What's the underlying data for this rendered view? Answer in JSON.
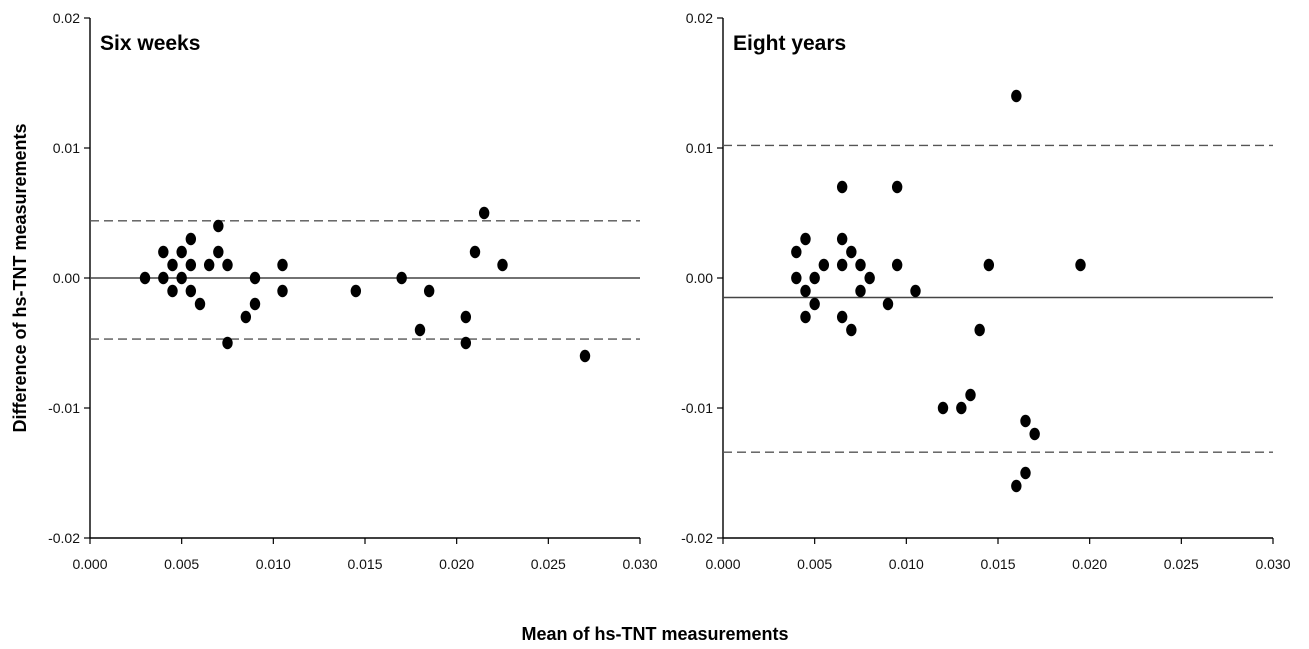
{
  "figure": {
    "ylabel": "Difference of hs-TNT measurements",
    "xlabel": "Mean of hs-TNT measurements"
  },
  "chart_data": [
    {
      "type": "scatter",
      "title": "Six weeks",
      "xlim": [
        0.0,
        0.03
      ],
      "ylim": [
        -0.02,
        0.02
      ],
      "x_ticks": [
        "0.000",
        "0.005",
        "0.010",
        "0.015",
        "0.020",
        "0.025",
        "0.030"
      ],
      "y_ticks": [
        "0.02",
        "0.01",
        "0.00",
        "-0.01",
        "-0.02"
      ],
      "grid": false,
      "mean_difference": 0.0,
      "limits_of_agreement": [
        0.0044,
        -0.0047
      ],
      "points": [
        {
          "x": 0.003,
          "y": 0.0
        },
        {
          "x": 0.004,
          "y": 0.002
        },
        {
          "x": 0.004,
          "y": 0.0
        },
        {
          "x": 0.0045,
          "y": 0.001
        },
        {
          "x": 0.0045,
          "y": -0.001
        },
        {
          "x": 0.005,
          "y": 0.002
        },
        {
          "x": 0.005,
          "y": 0.0
        },
        {
          "x": 0.0055,
          "y": 0.003
        },
        {
          "x": 0.0055,
          "y": 0.001
        },
        {
          "x": 0.0055,
          "y": -0.001
        },
        {
          "x": 0.006,
          "y": -0.002
        },
        {
          "x": 0.0065,
          "y": 0.001
        },
        {
          "x": 0.007,
          "y": 0.004
        },
        {
          "x": 0.007,
          "y": 0.002
        },
        {
          "x": 0.0075,
          "y": 0.001
        },
        {
          "x": 0.0075,
          "y": -0.005
        },
        {
          "x": 0.0085,
          "y": -0.003
        },
        {
          "x": 0.009,
          "y": 0.0
        },
        {
          "x": 0.009,
          "y": -0.002
        },
        {
          "x": 0.0105,
          "y": 0.001
        },
        {
          "x": 0.0105,
          "y": -0.001
        },
        {
          "x": 0.0145,
          "y": -0.001
        },
        {
          "x": 0.017,
          "y": 0.0
        },
        {
          "x": 0.018,
          "y": -0.004
        },
        {
          "x": 0.0185,
          "y": -0.001
        },
        {
          "x": 0.0205,
          "y": -0.003
        },
        {
          "x": 0.0205,
          "y": -0.005
        },
        {
          "x": 0.021,
          "y": 0.002
        },
        {
          "x": 0.0215,
          "y": 0.005
        },
        {
          "x": 0.0225,
          "y": 0.001
        },
        {
          "x": 0.027,
          "y": -0.006
        }
      ]
    },
    {
      "type": "scatter",
      "title": "Eight years",
      "xlim": [
        0.0,
        0.03
      ],
      "ylim": [
        -0.02,
        0.02
      ],
      "x_ticks": [
        "0.000",
        "0.005",
        "0.010",
        "0.015",
        "0.020",
        "0.025",
        "0.030"
      ],
      "y_ticks": [
        "0.02",
        "0.01",
        "0.00",
        "-0.01",
        "-0.02"
      ],
      "grid": false,
      "mean_difference": -0.0015,
      "limits_of_agreement": [
        0.0102,
        -0.0134
      ],
      "points": [
        {
          "x": 0.004,
          "y": 0.002
        },
        {
          "x": 0.004,
          "y": 0.0
        },
        {
          "x": 0.0045,
          "y": 0.003
        },
        {
          "x": 0.0045,
          "y": -0.001
        },
        {
          "x": 0.0045,
          "y": -0.003
        },
        {
          "x": 0.005,
          "y": 0.0
        },
        {
          "x": 0.005,
          "y": -0.002
        },
        {
          "x": 0.0055,
          "y": 0.001
        },
        {
          "x": 0.0065,
          "y": 0.007
        },
        {
          "x": 0.0065,
          "y": 0.003
        },
        {
          "x": 0.0065,
          "y": 0.001
        },
        {
          "x": 0.0065,
          "y": -0.003
        },
        {
          "x": 0.007,
          "y": 0.002
        },
        {
          "x": 0.007,
          "y": -0.004
        },
        {
          "x": 0.0075,
          "y": 0.001
        },
        {
          "x": 0.0075,
          "y": -0.001
        },
        {
          "x": 0.008,
          "y": 0.0
        },
        {
          "x": 0.009,
          "y": -0.002
        },
        {
          "x": 0.0095,
          "y": 0.007
        },
        {
          "x": 0.0095,
          "y": 0.001
        },
        {
          "x": 0.0105,
          "y": -0.001
        },
        {
          "x": 0.012,
          "y": -0.01
        },
        {
          "x": 0.013,
          "y": -0.01
        },
        {
          "x": 0.0135,
          "y": -0.009
        },
        {
          "x": 0.014,
          "y": -0.004
        },
        {
          "x": 0.0145,
          "y": 0.001
        },
        {
          "x": 0.016,
          "y": 0.014
        },
        {
          "x": 0.016,
          "y": -0.016
        },
        {
          "x": 0.0165,
          "y": -0.011
        },
        {
          "x": 0.0165,
          "y": -0.015
        },
        {
          "x": 0.017,
          "y": -0.012
        },
        {
          "x": 0.0195,
          "y": 0.001
        }
      ]
    }
  ]
}
